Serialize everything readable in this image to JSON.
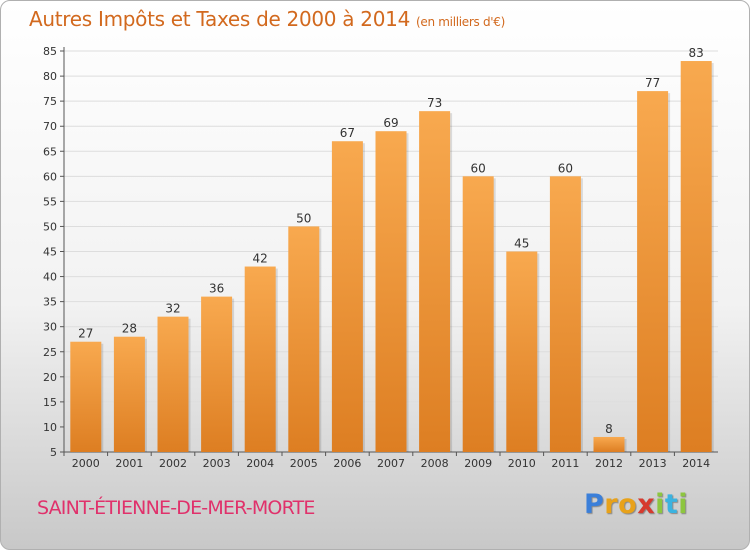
{
  "header": {
    "title": "Autres Impôts et Taxes de 2000 à 2014",
    "unit": "(en milliers d'€)"
  },
  "footer": {
    "commune": "SAINT-ÉTIENNE-DE-MER-MORTE"
  },
  "logo": {
    "text": "Proxiti",
    "letters": [
      "P",
      "r",
      "o",
      "x",
      "i",
      "t",
      "i"
    ],
    "letter_colors": [
      "#3b7fd9",
      "#e8a21a",
      "#e8a21a",
      "#d63a2e",
      "#8dc63f",
      "#3bb3e0",
      "#8dc63f"
    ]
  },
  "colors": {
    "bar_light": "#f8a94f",
    "bar_dark": "#dd7e22",
    "axis": "#555555",
    "tick_x": "#cc2233",
    "grid": "#dddddd",
    "title": "#d2691e",
    "commune": "#e0316b"
  },
  "chart_data": {
    "type": "bar",
    "categories": [
      "2000",
      "2001",
      "2002",
      "2003",
      "2004",
      "2005",
      "2006",
      "2007",
      "2008",
      "2009",
      "2010",
      "2011",
      "2012",
      "2013",
      "2014"
    ],
    "values": [
      27,
      28,
      32,
      36,
      42,
      50,
      67,
      69,
      73,
      60,
      45,
      60,
      8,
      77,
      83
    ],
    "ylim": [
      5,
      85
    ],
    "yticks": [
      5,
      10,
      15,
      20,
      25,
      30,
      35,
      40,
      45,
      50,
      55,
      60,
      65,
      70,
      75,
      80,
      85
    ],
    "grid": true,
    "data_labels": true,
    "legend": "none"
  }
}
